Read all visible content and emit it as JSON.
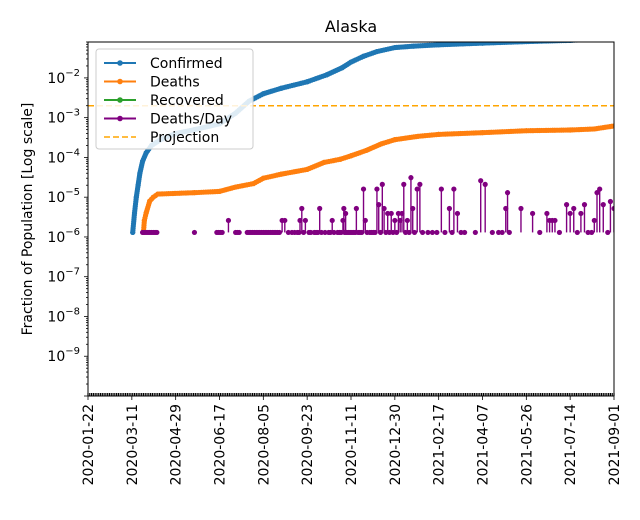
{
  "chart_data": {
    "type": "line",
    "title": "Alaska",
    "xlabel": "",
    "ylabel": "Fraction of Population [Log scale]",
    "yscale": "log",
    "ylim": [
      1e-10,
      0.08
    ],
    "xlim": [
      "2020-01-22",
      "2021-09-01"
    ],
    "x_ticks": [
      "2020-01-22",
      "2020-03-11",
      "2020-04-29",
      "2020-06-17",
      "2020-08-05",
      "2020-09-23",
      "2020-11-11",
      "2020-12-30",
      "2021-02-17",
      "2021-04-07",
      "2021-05-26",
      "2021-07-14",
      "2021-09-01"
    ],
    "y_ticks": [
      {
        "value": 1e-09,
        "base": "10",
        "exp": "−9"
      },
      {
        "value": 1e-08,
        "base": "10",
        "exp": "−8"
      },
      {
        "value": 1e-07,
        "base": "10",
        "exp": "−7"
      },
      {
        "value": 1e-06,
        "base": "10",
        "exp": "−6"
      },
      {
        "value": 1e-05,
        "base": "10",
        "exp": "−5"
      },
      {
        "value": 0.0001,
        "base": "10",
        "exp": "−4"
      },
      {
        "value": 0.001,
        "base": "10",
        "exp": "−3"
      },
      {
        "value": 0.01,
        "base": "10",
        "exp": "−2"
      }
    ],
    "legend_position": "top-left",
    "grid": false,
    "series": [
      {
        "name": "Confirmed",
        "color": "#1f77b4",
        "style": "line-dot",
        "points": [
          [
            "2020-03-12",
            1.3e-06
          ],
          [
            "2020-03-14",
            4e-06
          ],
          [
            "2020-03-16",
            1e-05
          ],
          [
            "2020-03-18",
            2e-05
          ],
          [
            "2020-03-20",
            4e-05
          ],
          [
            "2020-03-23",
            8e-05
          ],
          [
            "2020-03-27",
            0.00013
          ],
          [
            "2020-04-02",
            0.0002
          ],
          [
            "2020-04-12",
            0.00028
          ],
          [
            "2020-04-29",
            0.0004
          ],
          [
            "2020-05-20",
            0.0005
          ],
          [
            "2020-06-17",
            0.0007
          ],
          [
            "2020-07-05",
            0.0013
          ],
          [
            "2020-07-20",
            0.0026
          ],
          [
            "2020-08-05",
            0.004
          ],
          [
            "2020-08-25",
            0.0055
          ],
          [
            "2020-09-23",
            0.008
          ],
          [
            "2020-10-15",
            0.012
          ],
          [
            "2020-11-01",
            0.018
          ],
          [
            "2020-11-11",
            0.025
          ],
          [
            "2020-11-25",
            0.035
          ],
          [
            "2020-12-10",
            0.046
          ],
          [
            "2020-12-30",
            0.058
          ],
          [
            "2021-01-20",
            0.063
          ],
          [
            "2021-02-17",
            0.068
          ],
          [
            "2021-04-07",
            0.075
          ],
          [
            "2021-05-26",
            0.082
          ],
          [
            "2021-07-14",
            0.088
          ],
          [
            "2021-09-01",
            0.1
          ]
        ]
      },
      {
        "name": "Deaths",
        "color": "#ff7f0e",
        "style": "line-dot",
        "points": [
          [
            "2020-03-24",
            1.3e-06
          ],
          [
            "2020-03-25",
            2.6e-06
          ],
          [
            "2020-03-27",
            4e-06
          ],
          [
            "2020-03-31",
            8e-06
          ],
          [
            "2020-04-04",
            1e-05
          ],
          [
            "2020-04-09",
            1.2e-05
          ],
          [
            "2020-05-20",
            1.3e-05
          ],
          [
            "2020-06-17",
            1.4e-05
          ],
          [
            "2020-07-05",
            1.8e-05
          ],
          [
            "2020-07-25",
            2.2e-05
          ],
          [
            "2020-08-05",
            3e-05
          ],
          [
            "2020-08-25",
            3.8e-05
          ],
          [
            "2020-09-23",
            5e-05
          ],
          [
            "2020-10-12",
            7.5e-05
          ],
          [
            "2020-10-30",
            9e-05
          ],
          [
            "2020-11-11",
            0.00011
          ],
          [
            "2020-11-28",
            0.00015
          ],
          [
            "2020-12-15",
            0.00022
          ],
          [
            "2020-12-30",
            0.00028
          ],
          [
            "2021-01-25",
            0.00034
          ],
          [
            "2021-02-17",
            0.00038
          ],
          [
            "2021-04-07",
            0.00042
          ],
          [
            "2021-05-26",
            0.00047
          ],
          [
            "2021-07-14",
            0.00049
          ],
          [
            "2021-08-10",
            0.00052
          ],
          [
            "2021-09-01",
            0.00062
          ]
        ]
      },
      {
        "name": "Recovered",
        "color": "#2ca02c",
        "style": "line-dot",
        "points": []
      },
      {
        "name": "Deaths/Day",
        "color": "#800080",
        "style": "line-dot",
        "points": [
          [
            "2020-03-23",
            1.3e-06
          ],
          [
            "2020-03-25",
            1.3e-06
          ],
          [
            "2020-03-27",
            1.3e-06
          ],
          [
            "2020-03-29",
            1.3e-06
          ],
          [
            "2020-03-31",
            1.3e-06
          ],
          [
            "2020-04-02",
            1.3e-06
          ],
          [
            "2020-04-04",
            1.3e-06
          ],
          [
            "2020-04-06",
            1.3e-06
          ],
          [
            "2020-04-08",
            1.3e-06
          ],
          [
            "2020-05-20",
            1.3e-06
          ],
          [
            "2020-06-14",
            1.3e-06
          ],
          [
            "2020-06-16",
            1.3e-06
          ],
          [
            "2020-06-18",
            1.3e-06
          ],
          [
            "2020-06-20",
            1.3e-06
          ],
          [
            "2020-06-27",
            2.6e-06
          ],
          [
            "2020-07-05",
            1.3e-06
          ],
          [
            "2020-07-07",
            1.3e-06
          ],
          [
            "2020-07-09",
            1.3e-06
          ],
          [
            "2020-07-18",
            1.3e-06
          ],
          [
            "2020-07-20",
            1.3e-06
          ],
          [
            "2020-07-22",
            1.3e-06
          ],
          [
            "2020-07-24",
            1.3e-06
          ],
          [
            "2020-07-26",
            1.3e-06
          ],
          [
            "2020-07-28",
            1.3e-06
          ],
          [
            "2020-07-30",
            1.3e-06
          ],
          [
            "2020-08-01",
            1.3e-06
          ],
          [
            "2020-08-03",
            1.3e-06
          ],
          [
            "2020-08-05",
            1.3e-06
          ],
          [
            "2020-08-07",
            1.3e-06
          ],
          [
            "2020-08-09",
            1.3e-06
          ],
          [
            "2020-08-11",
            1.3e-06
          ],
          [
            "2020-08-13",
            1.3e-06
          ],
          [
            "2020-08-15",
            1.3e-06
          ],
          [
            "2020-08-17",
            1.3e-06
          ],
          [
            "2020-08-19",
            1.3e-06
          ],
          [
            "2020-08-21",
            1.3e-06
          ],
          [
            "2020-08-23",
            1.3e-06
          ],
          [
            "2020-08-26",
            2.6e-06
          ],
          [
            "2020-08-29",
            2.6e-06
          ],
          [
            "2020-09-02",
            1.3e-06
          ],
          [
            "2020-09-06",
            1.3e-06
          ],
          [
            "2020-09-09",
            1.3e-06
          ],
          [
            "2020-09-12",
            1.3e-06
          ],
          [
            "2020-09-14",
            1.3e-06
          ],
          [
            "2020-09-15",
            2.6e-06
          ],
          [
            "2020-09-17",
            5.2e-06
          ],
          [
            "2020-09-19",
            1.3e-06
          ],
          [
            "2020-09-21",
            2.6e-06
          ],
          [
            "2020-09-25",
            1.3e-06
          ],
          [
            "2020-09-27",
            1.3e-06
          ],
          [
            "2020-10-01",
            1.3e-06
          ],
          [
            "2020-10-03",
            1.3e-06
          ],
          [
            "2020-10-05",
            1.3e-06
          ],
          [
            "2020-10-07",
            5.2e-06
          ],
          [
            "2020-10-09",
            1.3e-06
          ],
          [
            "2020-10-13",
            1.3e-06
          ],
          [
            "2020-10-17",
            1.3e-06
          ],
          [
            "2020-10-19",
            1.3e-06
          ],
          [
            "2020-10-21",
            2.6e-06
          ],
          [
            "2020-10-23",
            1.3e-06
          ],
          [
            "2020-10-27",
            1.3e-06
          ],
          [
            "2020-10-29",
            1.3e-06
          ],
          [
            "2020-10-31",
            1.3e-06
          ],
          [
            "2020-11-02",
            2.6e-06
          ],
          [
            "2020-11-03",
            5.2e-06
          ],
          [
            "2020-11-04",
            1.3e-06
          ],
          [
            "2020-11-05",
            3.9e-06
          ],
          [
            "2020-11-06",
            1.3e-06
          ],
          [
            "2020-11-08",
            1.3e-06
          ],
          [
            "2020-11-10",
            1.3e-06
          ],
          [
            "2020-11-12",
            1.3e-06
          ],
          [
            "2020-11-14",
            1.3e-06
          ],
          [
            "2020-11-16",
            1.3e-06
          ],
          [
            "2020-11-17",
            5.2e-06
          ],
          [
            "2020-11-19",
            1.3e-06
          ],
          [
            "2020-11-21",
            1.3e-06
          ],
          [
            "2020-11-23",
            1.3e-06
          ],
          [
            "2020-11-25",
            1.6e-05
          ],
          [
            "2020-11-27",
            2.6e-06
          ],
          [
            "2020-11-29",
            1.3e-06
          ],
          [
            "2020-12-02",
            1.3e-06
          ],
          [
            "2020-12-04",
            1.3e-06
          ],
          [
            "2020-12-06",
            1.3e-06
          ],
          [
            "2020-12-08",
            1.3e-06
          ],
          [
            "2020-12-10",
            1.6e-05
          ],
          [
            "2020-12-12",
            6.5e-06
          ],
          [
            "2020-12-14",
            1.3e-06
          ],
          [
            "2020-12-16",
            2.1e-05
          ],
          [
            "2020-12-18",
            5.2e-06
          ],
          [
            "2020-12-20",
            1.3e-06
          ],
          [
            "2020-12-22",
            3.9e-06
          ],
          [
            "2020-12-24",
            1.3e-06
          ],
          [
            "2020-12-26",
            3.9e-06
          ],
          [
            "2020-12-28",
            1.3e-06
          ],
          [
            "2020-12-30",
            2.6e-06
          ],
          [
            "2021-01-01",
            1.3e-06
          ],
          [
            "2021-01-03",
            3.9e-06
          ],
          [
            "2021-01-05",
            2.6e-06
          ],
          [
            "2021-01-07",
            3.9e-06
          ],
          [
            "2021-01-09",
            2.1e-05
          ],
          [
            "2021-01-11",
            1.3e-06
          ],
          [
            "2021-01-13",
            2.6e-06
          ],
          [
            "2021-01-15",
            1.3e-06
          ],
          [
            "2021-01-17",
            3.1e-05
          ],
          [
            "2021-01-19",
            5.2e-06
          ],
          [
            "2021-01-21",
            1.3e-06
          ],
          [
            "2021-01-24",
            1.6e-05
          ],
          [
            "2021-01-27",
            2.1e-05
          ],
          [
            "2021-01-30",
            1.3e-06
          ],
          [
            "2021-02-05",
            1.3e-06
          ],
          [
            "2021-02-10",
            1.3e-06
          ],
          [
            "2021-02-15",
            1.3e-06
          ],
          [
            "2021-02-20",
            1.6e-05
          ],
          [
            "2021-02-24",
            1.3e-06
          ],
          [
            "2021-03-01",
            5.2e-06
          ],
          [
            "2021-03-04",
            1.3e-06
          ],
          [
            "2021-03-06",
            1.6e-05
          ],
          [
            "2021-03-10",
            3.9e-06
          ],
          [
            "2021-03-14",
            1.3e-06
          ],
          [
            "2021-03-18",
            1.3e-06
          ],
          [
            "2021-03-30",
            1.3e-06
          ],
          [
            "2021-04-05",
            2.6e-05
          ],
          [
            "2021-04-10",
            2.1e-05
          ],
          [
            "2021-04-18",
            1.3e-06
          ],
          [
            "2021-04-25",
            1.3e-06
          ],
          [
            "2021-04-29",
            1.3e-06
          ],
          [
            "2021-05-03",
            5.2e-06
          ],
          [
            "2021-05-05",
            1.3e-05
          ],
          [
            "2021-05-07",
            1.3e-06
          ],
          [
            "2021-05-20",
            5.2e-06
          ],
          [
            "2021-06-02",
            3.9e-06
          ],
          [
            "2021-06-10",
            1.3e-06
          ],
          [
            "2021-06-18",
            3.9e-06
          ],
          [
            "2021-06-21",
            2.6e-06
          ],
          [
            "2021-06-24",
            2.6e-06
          ],
          [
            "2021-06-27",
            2.6e-06
          ],
          [
            "2021-07-02",
            1.3e-06
          ],
          [
            "2021-07-10",
            6.5e-06
          ],
          [
            "2021-07-14",
            3.9e-06
          ],
          [
            "2021-07-18",
            5.2e-06
          ],
          [
            "2021-07-22",
            1.3e-06
          ],
          [
            "2021-07-26",
            3.9e-06
          ],
          [
            "2021-07-30",
            6.5e-06
          ],
          [
            "2021-08-03",
            1.3e-06
          ],
          [
            "2021-08-07",
            1.3e-06
          ],
          [
            "2021-08-10",
            2.6e-06
          ],
          [
            "2021-08-13",
            1.3e-05
          ],
          [
            "2021-08-16",
            1.6e-05
          ],
          [
            "2021-08-20",
            6.5e-06
          ],
          [
            "2021-08-25",
            1.3e-06
          ],
          [
            "2021-08-28",
            7.8e-06
          ],
          [
            "2021-09-01",
            5.2e-06
          ]
        ]
      },
      {
        "name": "Projection",
        "color": "#ffa500",
        "style": "dashed",
        "y_constant": 0.002
      }
    ]
  }
}
